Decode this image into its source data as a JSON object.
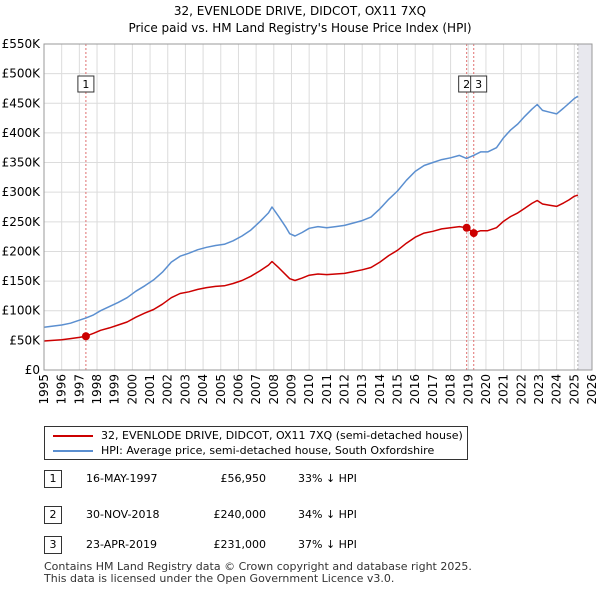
{
  "title_line1": "32, EVENLODE DRIVE, DIDCOT, OX11 7XQ",
  "title_line2": "Price paid vs. HM Land Registry's House Price Index (HPI)",
  "chart_data": {
    "type": "line",
    "title": "32, EVENLODE DRIVE, DIDCOT, OX11 7XQ — Price paid vs. HM Land Registry's House Price Index (HPI)",
    "xlabel": "",
    "ylabel": "",
    "xlim": [
      1995,
      2026
    ],
    "ylim": [
      0,
      550000
    ],
    "grid": true,
    "x_ticks": [
      "1995",
      "1996",
      "1997",
      "1998",
      "1999",
      "2000",
      "2001",
      "2002",
      "2003",
      "2004",
      "2005",
      "2006",
      "2007",
      "2008",
      "2009",
      "2010",
      "2011",
      "2012",
      "2013",
      "2014",
      "2015",
      "2016",
      "2017",
      "2018",
      "2019",
      "2020",
      "2021",
      "2022",
      "2023",
      "2024",
      "2025",
      "2026"
    ],
    "y_ticks": [
      {
        "value": 0,
        "label": "£0"
      },
      {
        "value": 50000,
        "label": "£50K"
      },
      {
        "value": 100000,
        "label": "£100K"
      },
      {
        "value": 150000,
        "label": "£150K"
      },
      {
        "value": 200000,
        "label": "£200K"
      },
      {
        "value": 250000,
        "label": "£250K"
      },
      {
        "value": 300000,
        "label": "£300K"
      },
      {
        "value": 350000,
        "label": "£350K"
      },
      {
        "value": 400000,
        "label": "£400K"
      },
      {
        "value": 450000,
        "label": "£450K"
      },
      {
        "value": 500000,
        "label": "£500K"
      },
      {
        "value": 550000,
        "label": "£550K"
      }
    ],
    "series": [
      {
        "name": "HPI: Average price, semi-detached house, South Oxfordshire",
        "color": "#5b8fd0",
        "x": [
          1995.0,
          1995.5,
          1996.0,
          1996.5,
          1997.0,
          1997.4,
          1997.8,
          1998.2,
          1998.7,
          1999.2,
          1999.7,
          2000.2,
          2000.7,
          2001.2,
          2001.7,
          2002.2,
          2002.7,
          2003.2,
          2003.7,
          2004.2,
          2004.7,
          2005.2,
          2005.7,
          2006.2,
          2006.7,
          2007.2,
          2007.7,
          2007.9,
          2008.3,
          2008.7,
          2008.9,
          2009.2,
          2009.6,
          2010.0,
          2010.5,
          2011.0,
          2011.5,
          2012.0,
          2012.5,
          2013.0,
          2013.5,
          2014.0,
          2014.5,
          2015.0,
          2015.5,
          2016.0,
          2016.5,
          2017.0,
          2017.5,
          2018.0,
          2018.5,
          2018.9,
          2019.3,
          2019.7,
          2020.1,
          2020.6,
          2021.0,
          2021.4,
          2021.8,
          2022.2,
          2022.6,
          2022.9,
          2023.2,
          2023.6,
          2024.0,
          2024.4,
          2024.7,
          2025.0,
          2025.2
        ],
        "values": [
          72000,
          74000,
          76000,
          79000,
          84000,
          88000,
          93000,
          100000,
          107000,
          114000,
          122000,
          133000,
          142000,
          152000,
          165000,
          182000,
          192000,
          197000,
          203000,
          207000,
          210000,
          212000,
          218000,
          226000,
          236000,
          250000,
          265000,
          275000,
          258000,
          240000,
          230000,
          226000,
          232000,
          239000,
          242000,
          240000,
          242000,
          244000,
          248000,
          252000,
          258000,
          272000,
          288000,
          302000,
          320000,
          335000,
          345000,
          350000,
          355000,
          358000,
          362000,
          357000,
          362000,
          368000,
          368000,
          375000,
          392000,
          405000,
          415000,
          428000,
          440000,
          448000,
          438000,
          435000,
          432000,
          442000,
          450000,
          458000,
          462000
        ]
      },
      {
        "name": "32, EVENLODE DRIVE, DIDCOT, OX11 7XQ (semi-detached house)",
        "color": "#cc0000",
        "x": [
          1995.0,
          1995.5,
          1996.0,
          1996.5,
          1997.0,
          1997.37,
          1997.8,
          1998.2,
          1998.7,
          1999.2,
          1999.7,
          2000.2,
          2000.7,
          2001.2,
          2001.7,
          2002.2,
          2002.7,
          2003.2,
          2003.7,
          2004.2,
          2004.7,
          2005.2,
          2005.7,
          2006.2,
          2006.7,
          2007.2,
          2007.7,
          2007.9,
          2008.3,
          2008.7,
          2008.9,
          2009.2,
          2009.6,
          2010.0,
          2010.5,
          2011.0,
          2011.5,
          2012.0,
          2012.5,
          2013.0,
          2013.5,
          2014.0,
          2014.5,
          2015.0,
          2015.5,
          2016.0,
          2016.5,
          2017.0,
          2017.5,
          2018.0,
          2018.5,
          2018.91,
          2019.31,
          2019.7,
          2020.1,
          2020.6,
          2021.0,
          2021.4,
          2021.8,
          2022.2,
          2022.6,
          2022.9,
          2023.2,
          2023.6,
          2024.0,
          2024.4,
          2024.7,
          2025.0,
          2025.2
        ],
        "values": [
          49000,
          50000,
          51000,
          53000,
          55000,
          56950,
          62000,
          67000,
          71000,
          76000,
          81000,
          89000,
          96000,
          102000,
          111000,
          122000,
          129000,
          132000,
          136000,
          139000,
          141000,
          142000,
          146000,
          151000,
          158000,
          167000,
          177000,
          183000,
          172000,
          160000,
          154000,
          151000,
          155000,
          160000,
          162000,
          161000,
          162000,
          163000,
          166000,
          169000,
          173000,
          182000,
          193000,
          202000,
          214000,
          224000,
          231000,
          234000,
          238000,
          240000,
          242000,
          240000,
          231000,
          235000,
          235000,
          240000,
          251000,
          259000,
          265000,
          273000,
          281000,
          286000,
          280000,
          278000,
          276000,
          282000,
          287000,
          293000,
          295000
        ]
      }
    ],
    "sales": [
      {
        "id": "1",
        "x": 1997.37,
        "price": 56950
      },
      {
        "id": "2",
        "x": 2018.91,
        "price": 240000
      },
      {
        "id": "3",
        "x": 2019.31,
        "price": 231000
      }
    ],
    "legend_position": "bottom"
  },
  "legend": [
    {
      "label": "32, EVENLODE DRIVE, DIDCOT, OX11 7XQ (semi-detached house)",
      "color": "#cc0000"
    },
    {
      "label": "HPI: Average price, semi-detached house, South Oxfordshire",
      "color": "#5b8fd0"
    }
  ],
  "sales_table": [
    {
      "num": "1",
      "date": "16-MAY-1997",
      "price": "£56,950",
      "hpi": "33% ↓ HPI"
    },
    {
      "num": "2",
      "date": "30-NOV-2018",
      "price": "£240,000",
      "hpi": "34% ↓ HPI"
    },
    {
      "num": "3",
      "date": "23-APR-2019",
      "price": "£231,000",
      "hpi": "37% ↓ HPI"
    }
  ],
  "footer_line1": "Contains HM Land Registry data © Crown copyright and database right 2025.",
  "footer_line2": "This data is licensed under the Open Government Licence v3.0."
}
